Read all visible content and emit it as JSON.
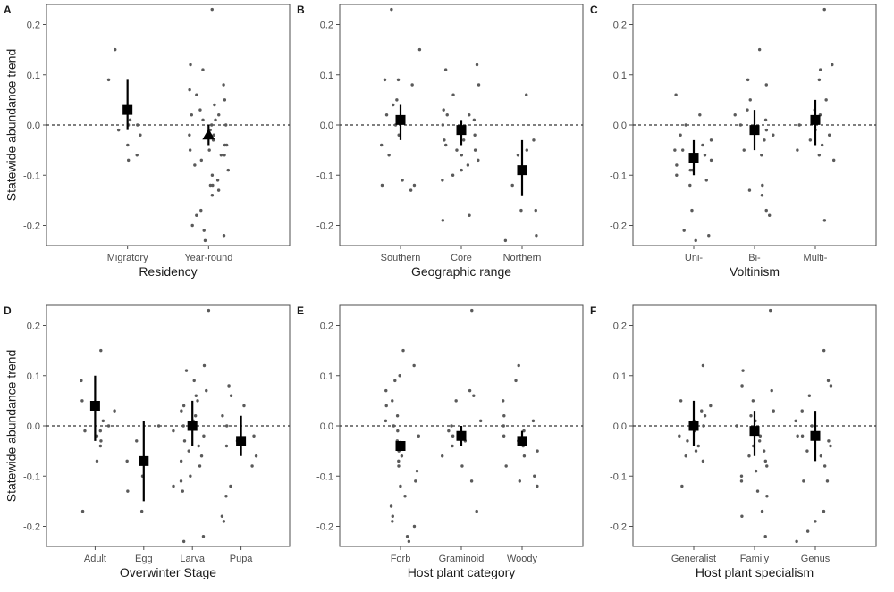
{
  "figure": {
    "ylabel": "Statewide abundance trend"
  },
  "chart_data": [
    {
      "panel": "A",
      "type": "scatter",
      "xlabel": "Residency",
      "categories": [
        "Migratory",
        "Year-round"
      ],
      "yticks": [
        -0.2,
        -0.1,
        0.0,
        0.1,
        0.2
      ],
      "ylim": [
        -0.24,
        0.24
      ],
      "reference_line": 0,
      "estimates": [
        {
          "mean": 0.03,
          "lower": -0.01,
          "upper": 0.09,
          "marker": "square"
        },
        {
          "mean": -0.02,
          "lower": -0.04,
          "upper": 0.0,
          "marker": "triangle"
        }
      ],
      "points": [
        [
          0.15,
          -0.06,
          0.01,
          0.03,
          -0.01,
          -0.02,
          0.0,
          -0.04,
          -0.07,
          0.0,
          0.09
        ],
        [
          0.23,
          0.12,
          0.11,
          0.08,
          0.06,
          0.05,
          0.04,
          0.02,
          0.02,
          0.01,
          0.0,
          0.0,
          -0.01,
          -0.02,
          -0.03,
          -0.04,
          -0.04,
          -0.05,
          -0.06,
          -0.06,
          -0.07,
          -0.08,
          -0.09,
          -0.1,
          -0.11,
          -0.12,
          -0.13,
          -0.14,
          -0.17,
          -0.18,
          -0.2,
          -0.21,
          -0.22,
          -0.23,
          0.03,
          -0.02,
          0.07,
          -0.12,
          -0.05,
          0.01
        ]
      ]
    },
    {
      "panel": "B",
      "type": "scatter",
      "xlabel": "Geographic range",
      "categories": [
        "Southern",
        "Core",
        "Northern"
      ],
      "yticks": [
        -0.2,
        -0.1,
        0.0,
        0.1,
        0.2
      ],
      "ylim": [
        -0.24,
        0.24
      ],
      "reference_line": 0,
      "estimates": [
        {
          "mean": 0.01,
          "lower": -0.03,
          "upper": 0.04,
          "marker": "square"
        },
        {
          "mean": -0.01,
          "lower": -0.04,
          "upper": 0.01,
          "marker": "square"
        },
        {
          "mean": -0.09,
          "lower": -0.14,
          "upper": -0.03,
          "marker": "square"
        }
      ],
      "points": [
        [
          0.23,
          0.15,
          0.09,
          0.09,
          0.08,
          0.05,
          0.04,
          0.02,
          0.0,
          -0.02,
          -0.04,
          -0.06,
          -0.11,
          -0.12,
          -0.13,
          -0.12
        ],
        [
          0.12,
          0.11,
          0.08,
          0.06,
          0.03,
          0.02,
          0.01,
          0.0,
          -0.01,
          -0.02,
          -0.03,
          -0.04,
          -0.05,
          -0.06,
          -0.07,
          -0.08,
          -0.09,
          -0.1,
          -0.11,
          -0.19,
          -0.18,
          0.02,
          -0.03,
          -0.05
        ],
        [
          0.06,
          -0.03,
          -0.05,
          -0.06,
          -0.12,
          -0.17,
          -0.22,
          -0.17,
          -0.23
        ]
      ]
    },
    {
      "panel": "C",
      "type": "scatter",
      "xlabel": "Voltinism",
      "categories": [
        "Uni-",
        "Bi-",
        "Multi-"
      ],
      "yticks": [
        -0.2,
        -0.1,
        0.0,
        0.1,
        0.2
      ],
      "ylim": [
        -0.24,
        0.24
      ],
      "reference_line": 0,
      "estimates": [
        {
          "mean": -0.065,
          "lower": -0.1,
          "upper": -0.03,
          "marker": "square"
        },
        {
          "mean": -0.01,
          "lower": -0.05,
          "upper": 0.03,
          "marker": "square"
        },
        {
          "mean": 0.01,
          "lower": -0.04,
          "upper": 0.05,
          "marker": "square"
        }
      ],
      "points": [
        [
          0.06,
          0.02,
          0.0,
          -0.02,
          -0.03,
          -0.04,
          -0.05,
          -0.06,
          -0.07,
          -0.08,
          -0.09,
          -0.1,
          -0.11,
          -0.12,
          -0.17,
          -0.21,
          -0.22,
          -0.23,
          -0.05,
          -0.09
        ],
        [
          0.15,
          0.09,
          0.08,
          0.05,
          0.03,
          0.02,
          0.0,
          -0.02,
          -0.03,
          -0.05,
          -0.06,
          -0.12,
          -0.13,
          -0.14,
          -0.17,
          -0.18,
          0.01,
          -0.01
        ],
        [
          0.23,
          0.12,
          0.11,
          0.09,
          0.05,
          0.03,
          0.02,
          0.0,
          -0.01,
          -0.02,
          -0.03,
          -0.05,
          -0.06,
          -0.07,
          -0.19,
          0.01,
          -0.04
        ]
      ]
    },
    {
      "panel": "D",
      "type": "scatter",
      "xlabel": "Overwinter Stage",
      "categories": [
        "Adult",
        "Egg",
        "Larva",
        "Pupa"
      ],
      "yticks": [
        -0.2,
        -0.1,
        0.0,
        0.1,
        0.2
      ],
      "ylim": [
        -0.24,
        0.24
      ],
      "reference_line": 0,
      "estimates": [
        {
          "mean": 0.04,
          "lower": -0.03,
          "upper": 0.1,
          "marker": "square"
        },
        {
          "mean": -0.07,
          "lower": -0.15,
          "upper": 0.01,
          "marker": "square"
        },
        {
          "mean": 0.0,
          "lower": -0.04,
          "upper": 0.05,
          "marker": "square"
        },
        {
          "mean": -0.03,
          "lower": -0.06,
          "upper": 0.02,
          "marker": "square"
        }
      ],
      "points": [
        [
          0.15,
          0.09,
          0.05,
          0.03,
          0.01,
          0.0,
          -0.01,
          -0.02,
          -0.03,
          -0.04,
          -0.07,
          -0.17,
          -0.01
        ],
        [
          -0.17,
          -0.13,
          -0.1,
          -0.07,
          -0.03,
          0.0
        ],
        [
          0.23,
          0.12,
          0.11,
          0.09,
          0.07,
          0.05,
          0.04,
          0.03,
          0.02,
          0.01,
          0.0,
          -0.01,
          -0.02,
          -0.03,
          -0.04,
          -0.05,
          -0.06,
          -0.08,
          -0.1,
          -0.11,
          -0.12,
          -0.13,
          -0.22,
          -0.23,
          0.06,
          -0.07
        ],
        [
          0.08,
          0.06,
          0.04,
          0.02,
          0.0,
          -0.02,
          -0.03,
          -0.04,
          -0.06,
          -0.08,
          -0.12,
          -0.14,
          -0.18,
          -0.19
        ]
      ]
    },
    {
      "panel": "E",
      "type": "scatter",
      "xlabel": "Host plant category",
      "categories": [
        "Forb",
        "Graminoid",
        "Woody"
      ],
      "yticks": [
        -0.2,
        -0.1,
        0.0,
        0.1,
        0.2
      ],
      "ylim": [
        -0.24,
        0.24
      ],
      "reference_line": 0,
      "estimates": [
        {
          "mean": -0.04,
          "lower": -0.05,
          "upper": -0.03,
          "marker": "square"
        },
        {
          "mean": -0.02,
          "lower": -0.04,
          "upper": 0.0,
          "marker": "square"
        },
        {
          "mean": -0.03,
          "lower": -0.04,
          "upper": -0.01,
          "marker": "square"
        }
      ],
      "points": [
        [
          0.15,
          0.12,
          0.1,
          0.09,
          0.07,
          0.04,
          0.02,
          0.01,
          0.0,
          -0.01,
          -0.02,
          -0.03,
          -0.05,
          -0.06,
          -0.07,
          -0.09,
          -0.11,
          -0.12,
          -0.14,
          -0.16,
          -0.18,
          -0.19,
          -0.2,
          -0.22,
          -0.23,
          0.05,
          -0.04,
          -0.08
        ],
        [
          0.23,
          0.07,
          0.06,
          0.05,
          0.01,
          0.0,
          -0.01,
          -0.03,
          -0.04,
          -0.06,
          -0.08,
          -0.11,
          -0.17,
          -0.02
        ],
        [
          0.12,
          0.09,
          0.05,
          0.02,
          0.01,
          0.0,
          -0.01,
          -0.02,
          -0.04,
          -0.05,
          -0.06,
          -0.08,
          -0.1,
          -0.11,
          -0.12,
          -0.03
        ]
      ]
    },
    {
      "panel": "F",
      "type": "scatter",
      "xlabel": "Host plant specialism",
      "categories": [
        "Generalist",
        "Family",
        "Genus"
      ],
      "yticks": [
        -0.2,
        -0.1,
        0.0,
        0.1,
        0.2
      ],
      "ylim": [
        -0.24,
        0.24
      ],
      "reference_line": 0,
      "estimates": [
        {
          "mean": 0.0,
          "lower": -0.04,
          "upper": 0.05,
          "marker": "square"
        },
        {
          "mean": -0.01,
          "lower": -0.06,
          "upper": 0.03,
          "marker": "square"
        },
        {
          "mean": -0.02,
          "lower": -0.07,
          "upper": 0.03,
          "marker": "square"
        }
      ],
      "points": [
        [
          0.12,
          0.05,
          0.03,
          0.02,
          0.01,
          0.0,
          -0.01,
          -0.02,
          -0.03,
          -0.04,
          -0.05,
          -0.06,
          -0.07,
          -0.12,
          0.04
        ],
        [
          0.23,
          0.11,
          0.08,
          0.07,
          0.05,
          0.03,
          0.02,
          0.0,
          -0.01,
          -0.02,
          -0.03,
          -0.04,
          -0.05,
          -0.06,
          -0.07,
          -0.08,
          -0.1,
          -0.11,
          -0.13,
          -0.14,
          -0.17,
          -0.18,
          -0.22,
          0.01,
          -0.09
        ],
        [
          0.15,
          0.09,
          0.08,
          0.06,
          0.03,
          0.01,
          0.0,
          -0.02,
          -0.03,
          -0.04,
          -0.05,
          -0.06,
          -0.08,
          -0.11,
          -0.11,
          -0.17,
          -0.19,
          -0.21,
          -0.23,
          -0.02
        ]
      ]
    }
  ]
}
